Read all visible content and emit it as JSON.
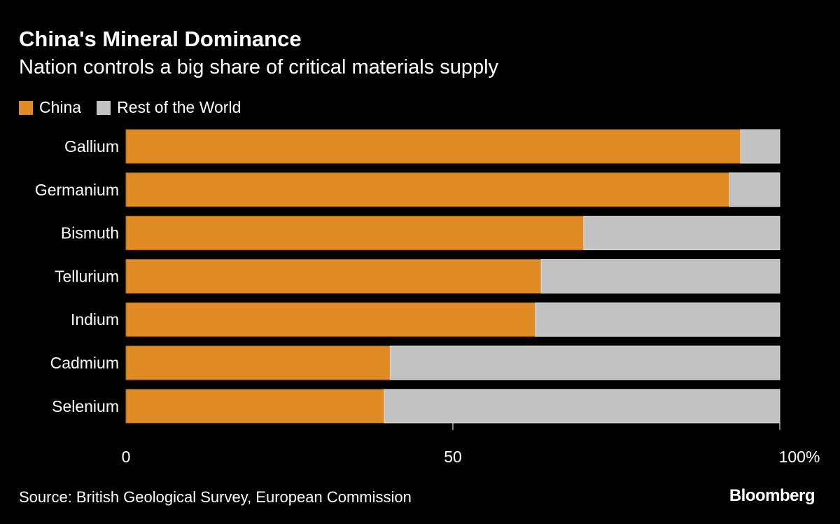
{
  "chart_data": {
    "type": "bar",
    "orientation": "horizontal",
    "stacked": true,
    "title": "China's Mineral Dominance",
    "subtitle": "Nation controls a big share of critical materials supply",
    "categories": [
      "Gallium",
      "Germanium",
      "Bismuth",
      "Tellurium",
      "Indium",
      "Cadmium",
      "Selenium"
    ],
    "series": [
      {
        "name": "China",
        "color": "#e08b24",
        "values": [
          94,
          92.3,
          70,
          63.5,
          62.6,
          40.4,
          39.5
        ]
      },
      {
        "name": "Rest of the World",
        "color": "#c2c2c2",
        "values": [
          6,
          7.7,
          30,
          36.5,
          37.4,
          59.6,
          60.5
        ]
      }
    ],
    "xlim": [
      0,
      100
    ],
    "xticks": [
      {
        "value": 0,
        "label": "0"
      },
      {
        "value": 50,
        "label": "50"
      },
      {
        "value": 100,
        "label": "100%"
      }
    ],
    "legend_position": "top-left",
    "grid": false
  },
  "source": "Source: British Geological Survey, European Commission",
  "logo": "Bloomberg"
}
